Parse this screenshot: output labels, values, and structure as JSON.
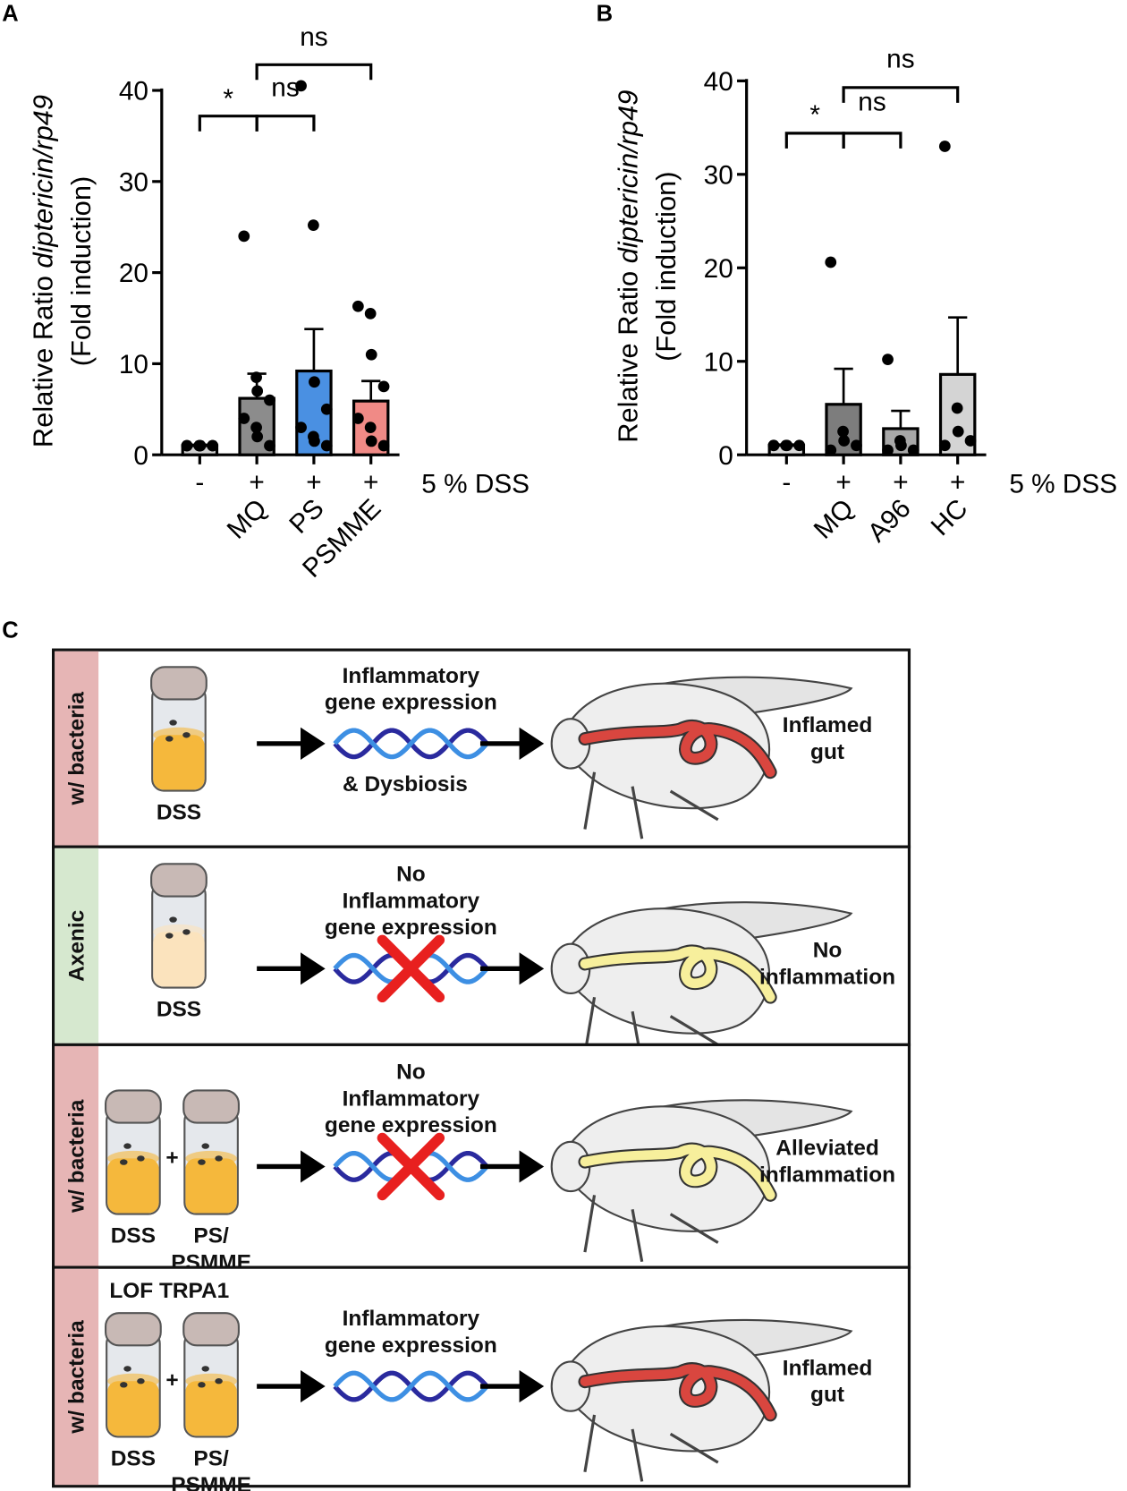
{
  "chart_data": [
    {
      "type": "bar",
      "panel": "A",
      "categories": [
        "-",
        "+",
        "+",
        "+"
      ],
      "groups": [
        null,
        "MQ",
        "PS",
        "PSMME"
      ],
      "values": [
        1.0,
        6.2,
        9.2,
        5.9
      ],
      "errors": [
        0.1,
        2.7,
        4.6,
        2.2
      ],
      "points": [
        [
          1,
          1,
          1,
          1,
          1,
          1,
          1,
          1
        ],
        [
          24,
          8.5,
          7,
          6,
          4,
          3,
          2,
          1
        ],
        [
          40.5,
          25.2,
          8,
          5,
          3,
          2,
          1.5,
          1
        ],
        [
          16.3,
          15.5,
          11,
          7.5,
          4,
          3,
          1.5,
          1
        ]
      ],
      "colors": [
        "#cfcfcf",
        "#8c8c8c",
        "#4a90e2",
        "#f08a86"
      ],
      "ylim": [
        0,
        40
      ],
      "yticks": [
        0,
        10,
        20,
        30,
        40
      ],
      "y_label": [
        "Relative Ratio ",
        "diptericin/rp49",
        "(Fold induction)"
      ],
      "x_label": "5 % DSS",
      "comparisons": [
        {
          "label": "*",
          "pair": [
            0,
            1
          ]
        },
        {
          "label": "ns",
          "pair": [
            1,
            2
          ]
        },
        {
          "label": "ns",
          "pair": [
            1,
            3
          ]
        }
      ]
    },
    {
      "type": "bar",
      "panel": "B",
      "categories": [
        "-",
        "+",
        "+",
        "+"
      ],
      "groups": [
        null,
        "MQ",
        "A96",
        "HC"
      ],
      "values": [
        1.0,
        5.4,
        2.8,
        8.6
      ],
      "errors": [
        0.1,
        3.8,
        1.9,
        6.1
      ],
      "points": [
        [
          1,
          1,
          1,
          1,
          1
        ],
        [
          20.6,
          2.5,
          1.5,
          1,
          0.5
        ],
        [
          10.2,
          1.5,
          1,
          0.5,
          0.5
        ],
        [
          33,
          5,
          2.5,
          1.5,
          1
        ]
      ],
      "colors": [
        "#d9d9d9",
        "#7d7d7d",
        "#a8a8a8",
        "#d4d4d4"
      ],
      "ylim": [
        0,
        40
      ],
      "yticks": [
        0,
        10,
        20,
        30,
        40
      ],
      "y_label": [
        "Relative Ratio ",
        "diptericin/rp49",
        "(Fold induction)"
      ],
      "x_label": "5 % DSS",
      "comparisons": [
        {
          "label": "*",
          "pair": [
            0,
            1
          ]
        },
        {
          "label": "ns",
          "pair": [
            1,
            2
          ]
        },
        {
          "label": "ns",
          "pair": [
            1,
            3
          ]
        }
      ]
    }
  ],
  "panel_c": {
    "letter": "C",
    "rows": [
      {
        "side": "w/ bacteria",
        "side_color": "#e6b5b5",
        "note": null,
        "vials": [
          {
            "label": [
              "DSS"
            ]
          }
        ],
        "medium_color": "#f5b83c",
        "effect": [
          "Inflammatory",
          "gene expression"
        ],
        "effect_note": "& Dysbiosis",
        "blocked": false,
        "gut_color": "#d9463f",
        "outcome": [
          "Inflamed",
          "gut"
        ]
      },
      {
        "side": "Axenic",
        "side_color": "#d6e8cf",
        "note": null,
        "vials": [
          {
            "label": [
              "DSS"
            ]
          }
        ],
        "medium_color": "#fbe3bd",
        "effect": [
          "No",
          "Inflammatory",
          "gene expression"
        ],
        "effect_note": null,
        "blocked": true,
        "gut_color": "#f7ef9c",
        "outcome": [
          "No",
          "inflammation"
        ]
      },
      {
        "side": "w/ bacteria",
        "side_color": "#e6b5b5",
        "note": null,
        "vials": [
          {
            "label": [
              "DSS"
            ]
          },
          {
            "label": [
              "PS/",
              "PSMME"
            ]
          }
        ],
        "medium_color": "#f5b83c",
        "effect": [
          "No",
          "Inflammatory",
          "gene expression"
        ],
        "effect_note": null,
        "blocked": true,
        "gut_color": "#f7ef9c",
        "outcome": [
          "Alleviated",
          "inflammation"
        ]
      },
      {
        "side": "w/ bacteria",
        "side_color": "#e6b5b5",
        "note": "LOF TRPA1",
        "vials": [
          {
            "label": [
              "DSS"
            ]
          },
          {
            "label": [
              "PS/",
              "PSMME"
            ]
          }
        ],
        "medium_color": "#f5b83c",
        "effect": [
          "Inflammatory",
          "gene expression"
        ],
        "effect_note": null,
        "blocked": false,
        "gut_color": "#d9463f",
        "outcome": [
          "Inflamed",
          "gut"
        ]
      }
    ]
  }
}
